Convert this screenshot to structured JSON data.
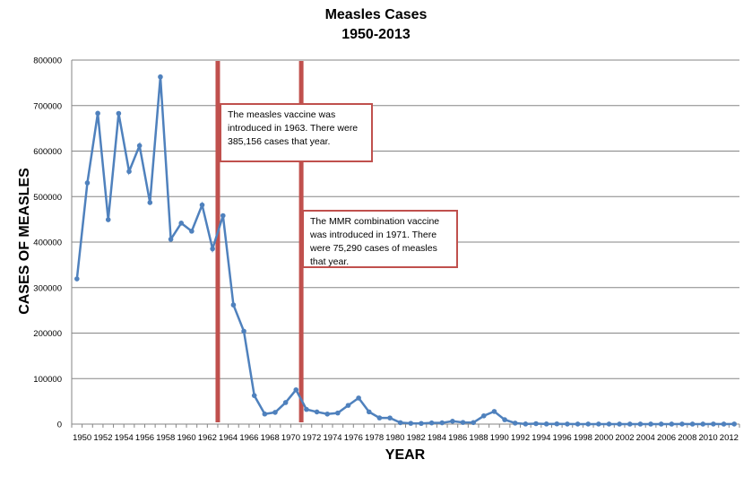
{
  "chart_data": {
    "type": "line",
    "title": "Measles Cases",
    "subtitle": "1950-2013",
    "xlabel": "YEAR",
    "ylabel": "CASES OF MEASLES",
    "ylim": [
      0,
      800000
    ],
    "yticks": [
      0,
      100000,
      200000,
      300000,
      400000,
      500000,
      600000,
      700000,
      800000
    ],
    "grid": true,
    "legend": "none",
    "line_color": "#4f81bd",
    "marker_line_color": "#c0504d",
    "x": [
      1950,
      1951,
      1952,
      1953,
      1954,
      1955,
      1956,
      1957,
      1958,
      1959,
      1960,
      1961,
      1962,
      1963,
      1964,
      1965,
      1966,
      1967,
      1968,
      1969,
      1970,
      1971,
      1972,
      1973,
      1974,
      1975,
      1976,
      1977,
      1978,
      1979,
      1980,
      1981,
      1982,
      1983,
      1984,
      1985,
      1986,
      1987,
      1988,
      1989,
      1990,
      1991,
      1992,
      1993,
      1994,
      1995,
      1996,
      1997,
      1998,
      1999,
      2000,
      2001,
      2002,
      2003,
      2004,
      2005,
      2006,
      2007,
      2008,
      2009,
      2010,
      2011,
      2012,
      2013
    ],
    "values": [
      319124,
      530118,
      683077,
      449146,
      682720,
      555156,
      611936,
      486799,
      763094,
      406162,
      441703,
      423919,
      481530,
      385156,
      458083,
      261904,
      204136,
      62705,
      22231,
      25826,
      47351,
      75290,
      32275,
      26690,
      22094,
      24374,
      41126,
      57345,
      26871,
      13597,
      13506,
      3124,
      1714,
      1497,
      2587,
      2822,
      6282,
      3655,
      3396,
      18193,
      27786,
      9643,
      2237,
      312,
      963,
      309,
      508,
      138,
      100,
      100,
      86,
      116,
      44,
      56,
      37,
      66,
      55,
      43,
      140,
      71,
      63,
      220,
      55,
      187
    ],
    "vertical_markers": [
      {
        "after_year": 1963,
        "annotation": "The measles vaccine was introduced in 1963. There were 385,156 cases that year."
      },
      {
        "after_year": 1971,
        "annotation": "The MMR combination vaccine was introduced in 1971. There were 75,290 cases of measles that year."
      }
    ]
  }
}
